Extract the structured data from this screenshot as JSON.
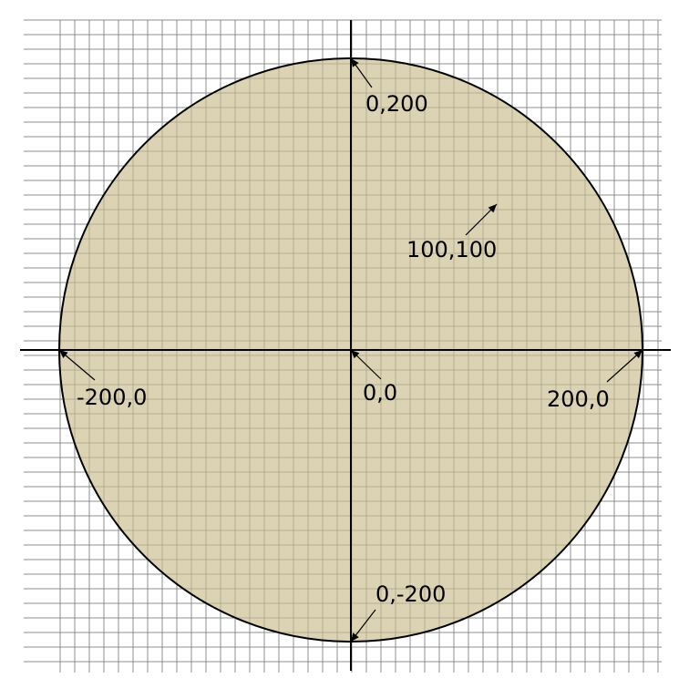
{
  "colors": {
    "background": "#ffffff",
    "grid": "#8f8f8f",
    "axis": "#000000",
    "circle_fill": "#c9bb8d",
    "circle_stroke": "#000000",
    "text": "#000000",
    "arrow": "#000000"
  },
  "grid": {
    "spacing_units": 10,
    "x_range": [
      -200,
      200
    ],
    "y_range": [
      -200,
      200
    ],
    "visible": true
  },
  "axes": {
    "x_range": [
      -200,
      200
    ],
    "y_range": [
      -200,
      200
    ]
  },
  "circle": {
    "center": [
      0,
      0
    ],
    "radius": 200
  },
  "annotations": [
    {
      "text": "0,200",
      "point": [
        0,
        200
      ]
    },
    {
      "text": "100,100",
      "point": [
        100,
        100
      ]
    },
    {
      "text": "-200,0",
      "point": [
        -200,
        0
      ]
    },
    {
      "text": "0,0",
      "point": [
        0,
        0
      ]
    },
    {
      "text": "200,0",
      "point": [
        200,
        0
      ]
    },
    {
      "text": "0,-200",
      "point": [
        0,
        -200
      ]
    }
  ]
}
